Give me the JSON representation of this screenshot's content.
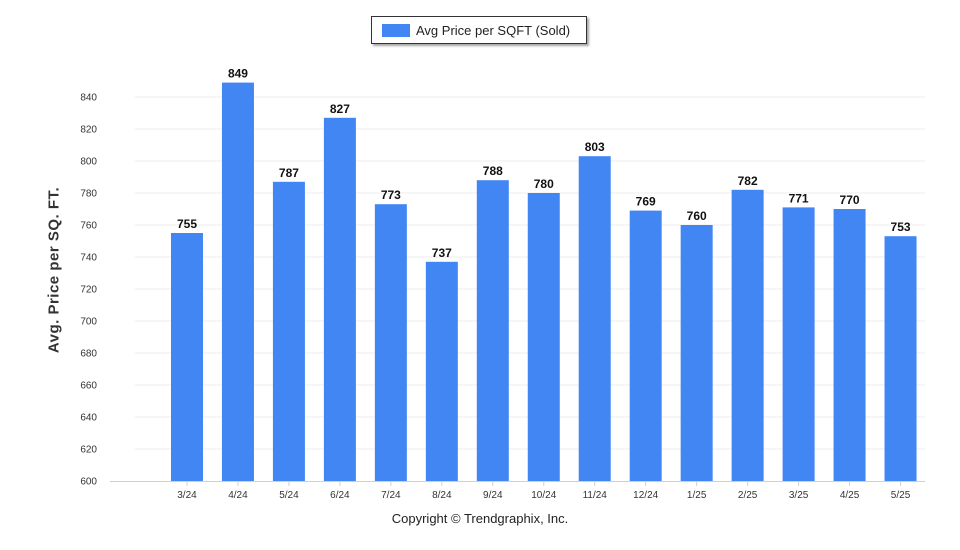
{
  "chart_data": {
    "type": "bar",
    "title": "",
    "xlabel": "",
    "ylabel": "Avg. Price per SQ. FT.",
    "ylim": [
      600,
      860
    ],
    "yticks": [
      600,
      620,
      640,
      660,
      680,
      700,
      720,
      740,
      760,
      780,
      800,
      820,
      840
    ],
    "grid": true,
    "legend": "top-center",
    "categories": [
      "3/24",
      "4/24",
      "5/24",
      "6/24",
      "7/24",
      "8/24",
      "9/24",
      "10/24",
      "11/24",
      "12/24",
      "1/25",
      "2/25",
      "3/25",
      "4/25",
      "5/25"
    ],
    "series": [
      {
        "name": "Avg Price per SQFT (Sold)",
        "color": "#4286f4",
        "values": [
          755,
          849,
          787,
          827,
          773,
          737,
          788,
          780,
          803,
          769,
          760,
          782,
          771,
          770,
          753
        ]
      }
    ]
  },
  "footer": {
    "copyright": "Copyright © Trendgraphix, Inc."
  }
}
